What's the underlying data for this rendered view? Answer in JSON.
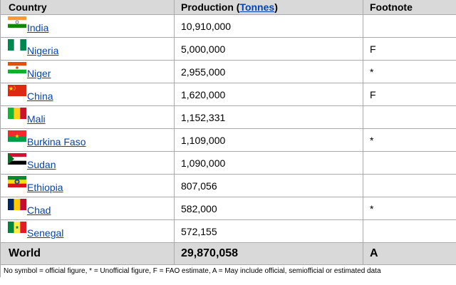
{
  "header": {
    "country": "Country",
    "production_prefix": "Production (",
    "production_link": "Tonnes",
    "production_suffix": ")",
    "footnote": "Footnote"
  },
  "rows": [
    {
      "country": "India",
      "flag": "india-flag",
      "production": "10,910,000",
      "footnote": ""
    },
    {
      "country": "Nigeria",
      "flag": "nigeria-flag",
      "production": "5,000,000",
      "footnote": "F"
    },
    {
      "country": "Niger",
      "flag": "niger-flag",
      "production": "2,955,000",
      "footnote": "*"
    },
    {
      "country": "China",
      "flag": "china-flag",
      "production": "1,620,000",
      "footnote": "F"
    },
    {
      "country": "Mali",
      "flag": "mali-flag",
      "production": "1,152,331",
      "footnote": ""
    },
    {
      "country": "Burkina Faso",
      "flag": "burkina-faso-flag",
      "production": "1,109,000",
      "footnote": "*"
    },
    {
      "country": "Sudan",
      "flag": "sudan-flag",
      "production": "1,090,000",
      "footnote": ""
    },
    {
      "country": "Ethiopia",
      "flag": "ethiopia-flag",
      "production": "807,056",
      "footnote": ""
    },
    {
      "country": "Chad",
      "flag": "chad-flag",
      "production": "582,000",
      "footnote": "*"
    },
    {
      "country": "Senegal",
      "flag": "senegal-flag",
      "production": "572,155",
      "footnote": ""
    }
  ],
  "total": {
    "label": "World",
    "production": "29,870,058",
    "footnote": "A"
  },
  "notes": "No symbol = official figure, * = Unofficial figure, F = FAO estimate, A = May include official, semiofficial or estimated data",
  "colors": {
    "header_bg": "#d9d9d9",
    "link": "#0645ad",
    "border": "#aaaaaa"
  }
}
